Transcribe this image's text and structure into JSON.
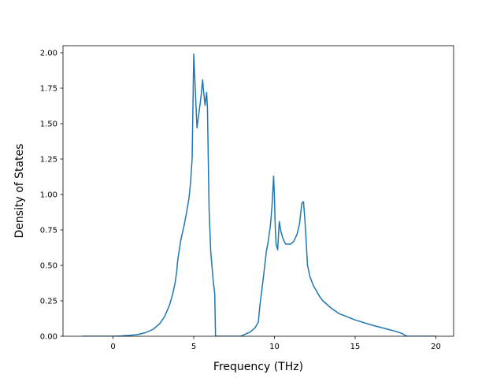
{
  "chart_data": {
    "type": "line",
    "title": "",
    "xlabel": "Frequency (THz)",
    "ylabel": "Density of States",
    "xlim": [
      -3.1,
      21.1
    ],
    "ylim": [
      0,
      2.05
    ],
    "xticks": [
      0,
      5,
      10,
      15,
      20
    ],
    "xtick_labels": [
      "0",
      "5",
      "10",
      "15",
      "20"
    ],
    "yticks": [
      0,
      0.25,
      0.5,
      0.75,
      1.0,
      1.25,
      1.5,
      1.75,
      2.0
    ],
    "ytick_labels": [
      "0.00",
      "0.25",
      "0.50",
      "0.75",
      "1.00",
      "1.25",
      "1.50",
      "1.75",
      "2.00"
    ],
    "grid": false,
    "legend": "none",
    "colors": {
      "line": "#1f77b4",
      "axes": "#000000",
      "background": "#ffffff"
    },
    "series": [
      {
        "x": [
          -1.9,
          -1.0,
          0.0,
          0.5,
          1.0,
          1.5,
          2.0,
          2.5,
          2.9,
          3.2,
          3.5,
          3.7,
          3.85,
          3.95,
          4.0,
          4.2,
          4.4,
          4.55,
          4.7,
          4.8,
          4.9,
          5.0,
          5.2,
          5.35,
          5.45,
          5.55,
          5.6,
          5.7,
          5.8,
          5.85,
          5.95,
          6.05,
          6.2,
          6.3,
          6.35,
          6.5,
          7.5,
          7.9,
          8.2,
          8.5,
          8.8,
          9.0,
          9.1,
          9.3,
          9.5,
          9.6,
          9.75,
          9.85,
          9.95,
          10.0,
          10.05,
          10.1,
          10.2,
          10.3,
          10.4,
          10.5,
          10.6,
          10.7,
          11.0,
          11.2,
          11.4,
          11.55,
          11.7,
          11.8,
          11.9,
          12.05,
          12.2,
          12.4,
          12.6,
          12.8,
          13.0,
          13.5,
          14.0,
          15.0,
          16.0,
          17.0,
          17.5,
          17.9,
          18.2,
          18.4,
          18.8,
          19.5,
          20.0
        ],
        "y": [
          0.0,
          0.0,
          0.0,
          0.002,
          0.006,
          0.012,
          0.025,
          0.05,
          0.09,
          0.14,
          0.22,
          0.3,
          0.38,
          0.46,
          0.53,
          0.68,
          0.78,
          0.87,
          0.97,
          1.08,
          1.25,
          1.99,
          1.47,
          1.6,
          1.69,
          1.81,
          1.74,
          1.63,
          1.72,
          1.61,
          0.9,
          0.6,
          0.4,
          0.3,
          0.0,
          0.0,
          0.0,
          0.0,
          0.015,
          0.03,
          0.06,
          0.1,
          0.22,
          0.4,
          0.6,
          0.66,
          0.78,
          0.92,
          1.13,
          0.98,
          0.77,
          0.65,
          0.61,
          0.81,
          0.74,
          0.7,
          0.67,
          0.65,
          0.65,
          0.67,
          0.72,
          0.79,
          0.94,
          0.95,
          0.8,
          0.5,
          0.42,
          0.36,
          0.32,
          0.28,
          0.25,
          0.2,
          0.16,
          0.115,
          0.08,
          0.05,
          0.035,
          0.02,
          0.0,
          0.0,
          0.0,
          0.0,
          0.0
        ]
      }
    ]
  }
}
